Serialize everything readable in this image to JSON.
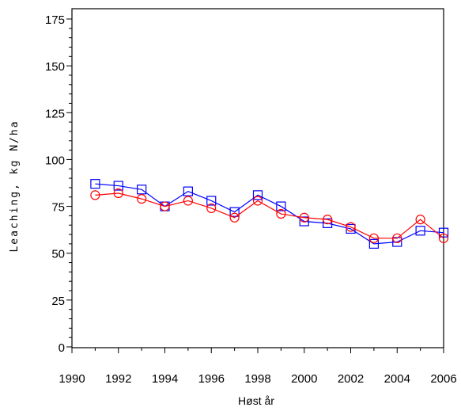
{
  "chart_data": {
    "type": "line",
    "title": "",
    "xlabel": "Høst år",
    "ylabel": "Leaching, kg N/ha",
    "xlim": [
      1990,
      2006
    ],
    "ylim": [
      0,
      175
    ],
    "x_ticks": [
      1990,
      1992,
      1994,
      1996,
      1998,
      2000,
      2002,
      2004,
      2006
    ],
    "y_ticks": [
      0,
      25,
      50,
      75,
      100,
      125,
      150,
      175
    ],
    "grid": false,
    "legend": "none",
    "x": [
      1991,
      1992,
      1993,
      1994,
      1995,
      1996,
      1997,
      1998,
      1999,
      2000,
      2001,
      2002,
      2003,
      2004,
      2005,
      2006
    ],
    "series": [
      {
        "marker": "square",
        "color": "#0000ff",
        "values": [
          87,
          86,
          84,
          75,
          83,
          78,
          72,
          81,
          75,
          67,
          66,
          63,
          55,
          56,
          62,
          61
        ]
      },
      {
        "marker": "circle",
        "color": "#ff0000",
        "values": [
          81,
          82,
          79,
          75,
          78,
          74,
          69,
          78,
          71,
          69,
          68,
          64,
          58,
          58,
          68,
          58
        ]
      }
    ]
  }
}
